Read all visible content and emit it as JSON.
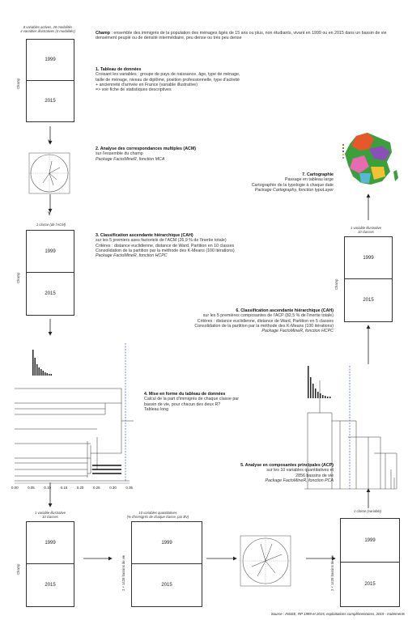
{
  "top_caption": [
    "8 variables actives, 28 modalités",
    "4 variables illustratives (4 modalités)"
  ],
  "table_side_label": "Champ",
  "table_years": [
    "1999",
    "2015"
  ],
  "champ": {
    "title": "Champ",
    "text": ": ensemble des immigrés de la population des ménages âgés de 15 ans ou plus, non étudiants, vivant en 1999 ou en 2015 dans un bassin de vie densément peuplé ou de densité intermédiaire, peu dense ou très peu dense"
  },
  "steps": {
    "s1": {
      "title": "1. Tableau de données",
      "lines": [
        "Croisant les variables : groupe de pays de naissance, âge, type de ménage,",
        "taille de ménage, niveau de diplôme, position professionnelle, type d'activité",
        "+ ancienneté d'arrivée en France (variable illustrative)",
        "=> voir fiche de statistiques descriptives"
      ]
    },
    "s2": {
      "title": "2. Analyse des correspondances multiples (ACM)",
      "lines": [
        "sur l'ensemble du champ"
      ],
      "package": "Package FactoMineR, fonction MCA"
    },
    "s3": {
      "title": "3. Classification ascendante hiérarchique (CAH)",
      "lines": [
        "sur les 5 premiers axes factoriels de l'ACM (26,9 % de l'inertie totale)",
        "Critères : distance euclidienne, distance de Ward, Partition en 10 classes",
        "Consolidation de la partition par la méthode des K-Means (100 itérations)"
      ],
      "package": "Package FactoMineR, fonction HCPC"
    },
    "s4": {
      "title": "4. Mise en forme du tableau de données",
      "lines": [
        "Calcul de la part d'immigrés de chaque classe par",
        "bassin de vie, pour chacun des deux R?",
        "Tableau long"
      ]
    },
    "s5": {
      "title": "5. Analyse en composantes principales (ACP)",
      "lines": [
        "sur les 10 variables quantitatives et",
        "2856 bassins de vie"
      ],
      "package": "Package FactoMineR, fonction PCA"
    },
    "s6": {
      "title": "6. Classification ascendante hiérarchique (CAH)",
      "lines": [
        "sur les 5 premières composantes de l'ACP (82,5 % de l'inertie totale)",
        "Critères : distance euclidienne, distance de Ward, Partition en 5 classes",
        "Consolidation de la partition par la méthode des K-Means (100 itérations)"
      ],
      "package": "Package FactoMineR, fonction HCPC"
    },
    "s7": {
      "title": "7. Cartographie",
      "lines": [
        "Passage en tableau large",
        "Cartographie de la typologie à chaque date"
      ],
      "package": "Package Cartography, fonction typoLayer"
    }
  },
  "box3_caption": "1 classe (de l'ACM)",
  "box_bl_caption": [
    "1 variable illustrative",
    "10 classes"
  ],
  "box_bm_caption": [
    "10 variables quantitatives",
    "(% d'immigrés de chaque classe, par BV)"
  ],
  "box_bm_side": "2 × 1428 bassins de vie",
  "box_br_caption": "1 classe (variable)",
  "box_br_side": "2 × 1428 bassins de vie",
  "box_rt_caption": [
    "1 variable illustrative",
    "10 classes"
  ],
  "arrow_label": "Y",
  "dendro_ticks": [
    "0.00",
    "0.05",
    "0.10",
    "0.15",
    "0.20",
    "0.25",
    "0.30",
    "0.35"
  ],
  "source": "Source : INSEE, RP 1999 et 2015, exploitations complémentaires, 2019 - traitements",
  "colors": {
    "dashed": "#1a3aaa",
    "line": "#333333"
  },
  "map_colors": [
    "#e6572a",
    "#3aa13a",
    "#8a4fb8",
    "#f2c230",
    "#e86ab0",
    "#56b8d6"
  ]
}
